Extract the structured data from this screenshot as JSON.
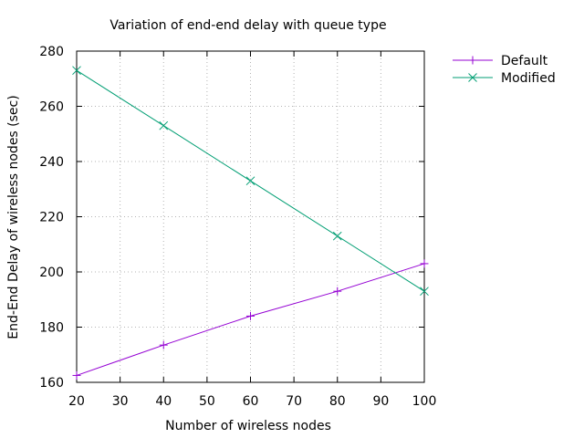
{
  "chart_data": {
    "type": "line",
    "title": "Variation of end-end delay with queue type",
    "xlabel": "Number of wireless nodes",
    "ylabel": "End-End Delay of wireless nodes (sec)",
    "xlim": [
      20,
      100
    ],
    "ylim": [
      160,
      280
    ],
    "xticks": [
      20,
      30,
      40,
      50,
      60,
      70,
      80,
      90,
      100
    ],
    "yticks": [
      160,
      180,
      200,
      220,
      240,
      260,
      280
    ],
    "grid": true,
    "legend_position": "outside top-right",
    "series": [
      {
        "name": "Default",
        "color": "#9400d3",
        "marker": "plus",
        "x": [
          20,
          40,
          60,
          80,
          100
        ],
        "y": [
          162.5,
          173.5,
          184,
          193,
          203
        ]
      },
      {
        "name": "Modified",
        "color": "#009e73",
        "marker": "cross",
        "x": [
          20,
          40,
          60,
          80,
          100
        ],
        "y": [
          273,
          253,
          233,
          213,
          193
        ]
      }
    ]
  }
}
